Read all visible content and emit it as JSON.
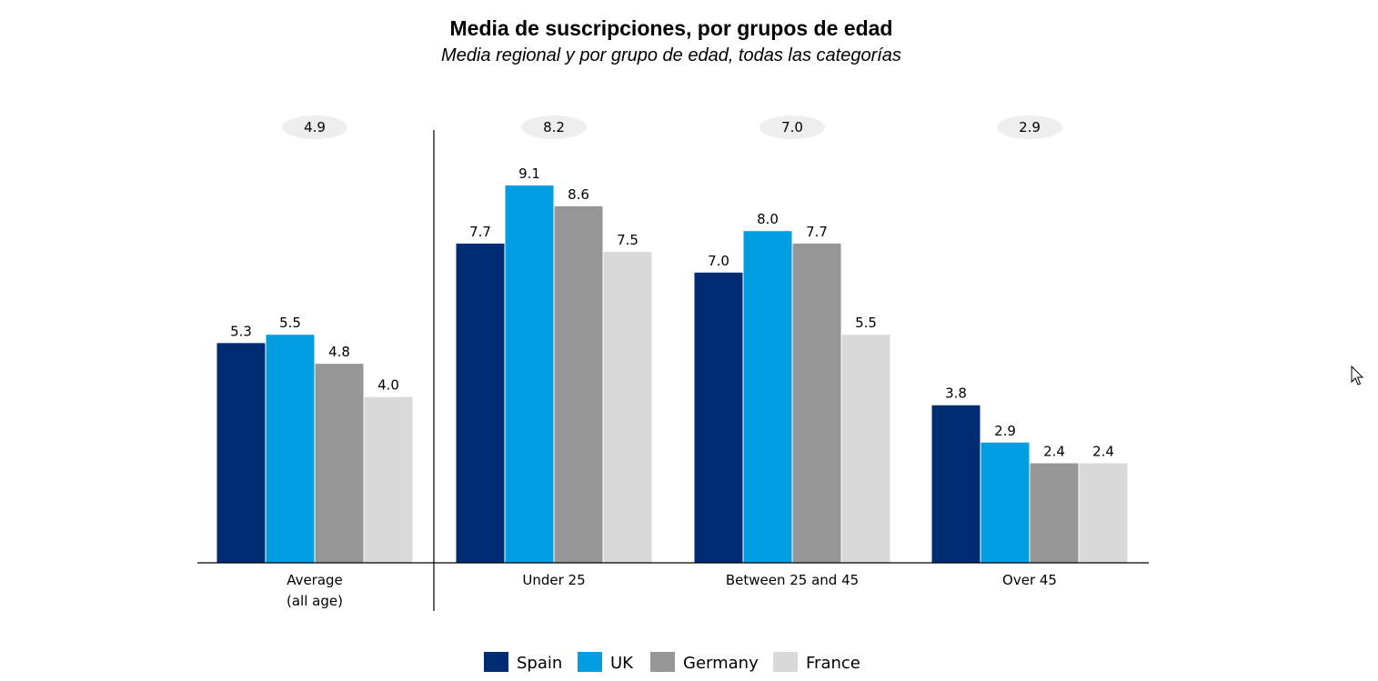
{
  "chart_data": {
    "type": "bar",
    "title": "Media de suscripciones, por grupos de edad",
    "subtitle": "Media regional y por grupo de edad, todas las categorías",
    "xlabel": "",
    "ylabel": "",
    "ylim": [
      0,
      10
    ],
    "grid": false,
    "legend_position": "bottom",
    "categories": [
      [
        "Average",
        "(all age)"
      ],
      [
        "Under 25"
      ],
      [
        "Between 25 and 45"
      ],
      [
        "Over 45"
      ]
    ],
    "group_averages": [
      "4.9",
      "8.2",
      "7.0",
      "2.9"
    ],
    "series": [
      {
        "name": "Spain",
        "color": "#002d72",
        "values": [
          5.3,
          7.7,
          7.0,
          3.8
        ],
        "labels": [
          "5.3",
          "7.7",
          "7.0",
          "3.8"
        ]
      },
      {
        "name": "UK",
        "color": "#009de0",
        "values": [
          5.5,
          9.1,
          8.0,
          2.9
        ],
        "labels": [
          "5.5",
          "9.1",
          "8.0",
          "2.9"
        ]
      },
      {
        "name": "Germany",
        "color": "#969696",
        "values": [
          4.8,
          8.6,
          7.7,
          2.4
        ],
        "labels": [
          "4.8",
          "8.6",
          "7.7",
          "2.4"
        ]
      },
      {
        "name": "France",
        "color": "#d9d9d9",
        "values": [
          4.0,
          7.5,
          5.5,
          2.4
        ],
        "labels": [
          "4.0",
          "7.5",
          "5.5",
          "2.4"
        ]
      }
    ]
  },
  "colors": {
    "axis": "#000000",
    "bubble": "#eeeeee"
  },
  "icons": {
    "cursor": "mouse-pointer-icon"
  }
}
